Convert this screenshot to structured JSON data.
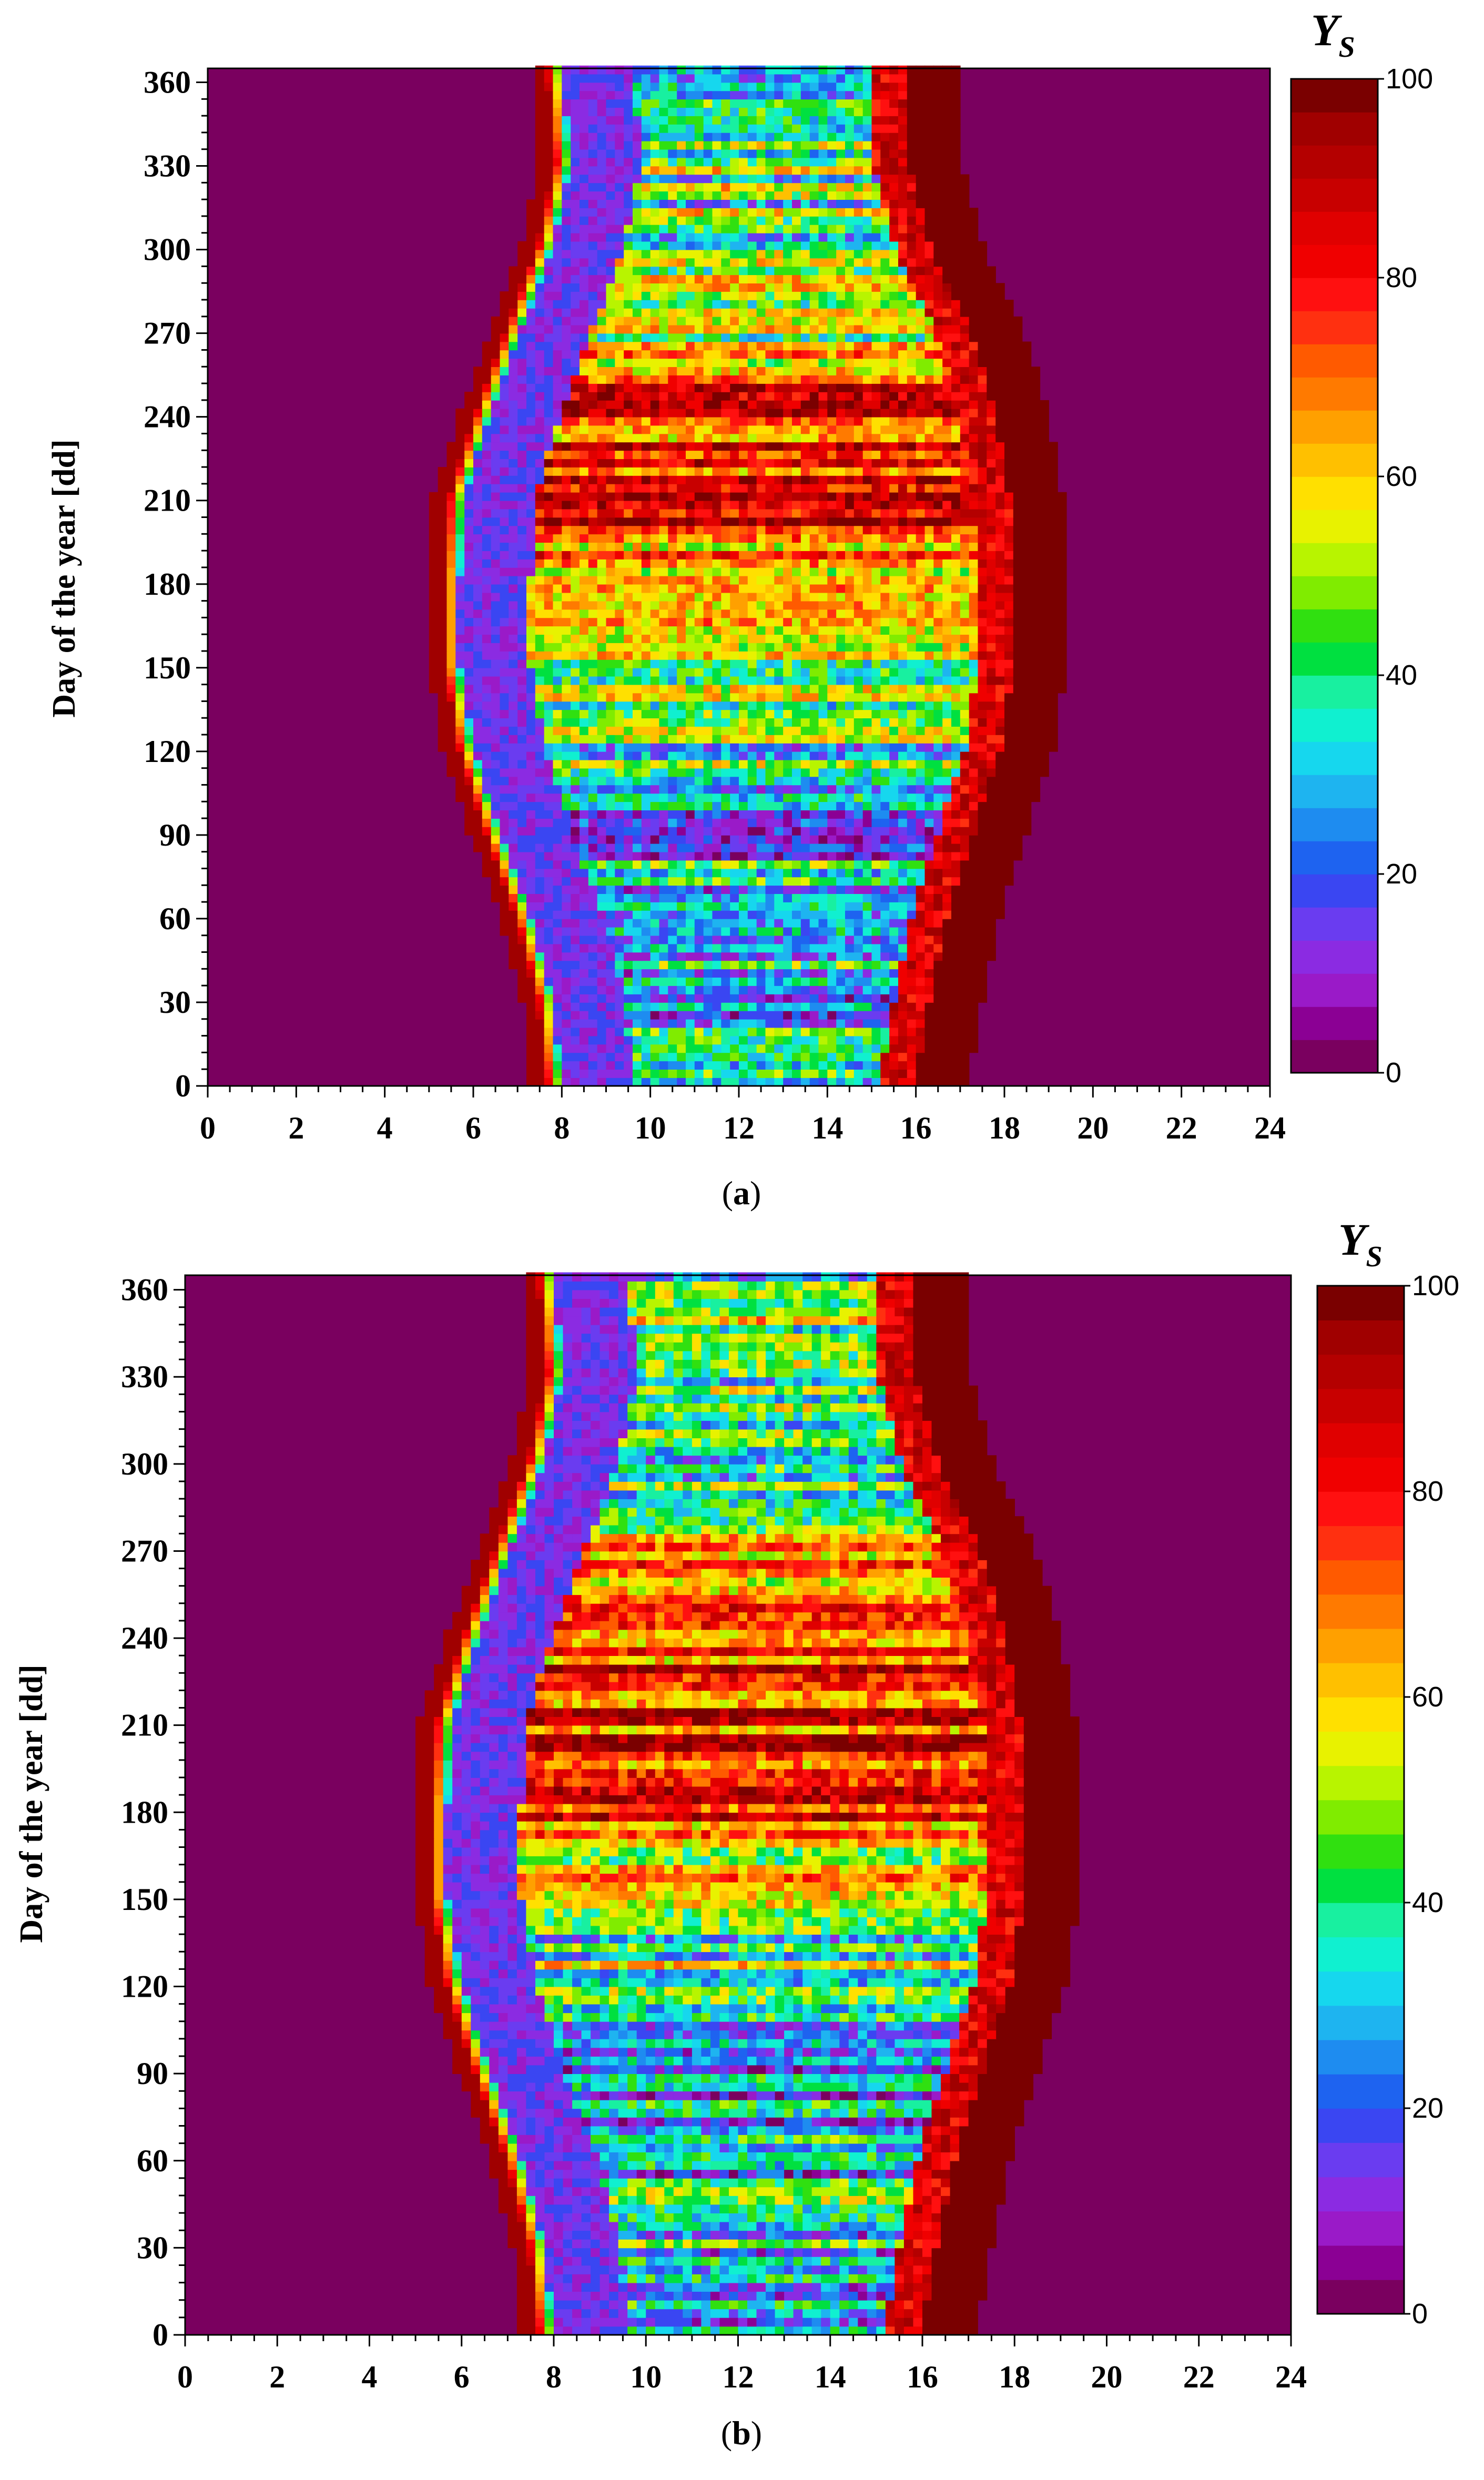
{
  "figure": {
    "panels": [
      {
        "caption_open": "(",
        "caption_letter": "a",
        "caption_close": ")"
      },
      {
        "caption_open": "(",
        "caption_letter": "b",
        "caption_close": ")"
      }
    ]
  },
  "colors": {
    "background": "#7a005f",
    "scale": [
      "#7a005f",
      "#8b0094",
      "#9a1ac8",
      "#8b2be2",
      "#6a3cf0",
      "#3a46f2",
      "#1e63f0",
      "#1e8cf0",
      "#1eb4f0",
      "#16d7ee",
      "#10f0d0",
      "#18f0a0",
      "#00e040",
      "#30e010",
      "#80ec00",
      "#b8f400",
      "#e8f200",
      "#ffe000",
      "#ffc000",
      "#ffa000",
      "#ff7a00",
      "#ff5a00",
      "#ff3010",
      "#ff1010",
      "#f00000",
      "#e00000",
      "#c80000",
      "#b40000",
      "#a00000",
      "#7a0000"
    ]
  },
  "chart_data": [
    {
      "type": "heatmap",
      "panel": "a",
      "xlabel": "",
      "ylabel": "Day of the year [dd]",
      "xlim": [
        0,
        24
      ],
      "ylim": [
        0,
        365
      ],
      "xticks": [
        "0",
        "2",
        "4",
        "6",
        "8",
        "10",
        "12",
        "14",
        "16",
        "18",
        "20",
        "22",
        "24"
      ],
      "yticks": [
        "0",
        "30",
        "60",
        "90",
        "120",
        "150",
        "180",
        "210",
        "240",
        "270",
        "300",
        "330",
        "360"
      ],
      "colorbar": {
        "title": "Y",
        "subscript": "S",
        "range": [
          0,
          100
        ],
        "ticks": [
          "0",
          "20",
          "40",
          "60",
          "80",
          "100"
        ],
        "levels": 30
      },
      "profiles": {
        "days": [
          0,
          30,
          60,
          90,
          120,
          150,
          180,
          210,
          240,
          270,
          300,
          330,
          365
        ],
        "sunrise": [
          7.2,
          7.0,
          6.5,
          5.8,
          5.2,
          4.9,
          4.9,
          5.0,
          5.6,
          6.3,
          7.0,
          7.4,
          7.2
        ],
        "sunset": [
          17.1,
          17.4,
          17.8,
          18.4,
          19.0,
          19.3,
          19.3,
          19.2,
          18.9,
          18.3,
          17.4,
          16.9,
          17.0
        ],
        "mid_level": [
          30,
          32,
          30,
          25,
          35,
          45,
          72,
          80,
          78,
          55,
          35,
          45,
          40
        ]
      }
    },
    {
      "type": "heatmap",
      "panel": "b",
      "xlabel": "",
      "ylabel": "Day of the year [dd]",
      "xlim": [
        0,
        24
      ],
      "ylim": [
        0,
        365
      ],
      "xticks": [
        "0",
        "2",
        "4",
        "6",
        "8",
        "10",
        "12",
        "14",
        "16",
        "18",
        "20",
        "22",
        "24"
      ],
      "yticks": [
        "0",
        "30",
        "60",
        "90",
        "120",
        "150",
        "180",
        "210",
        "240",
        "270",
        "300",
        "330",
        "360"
      ],
      "colorbar": {
        "title": "Y",
        "subscript": "S",
        "range": [
          0,
          100
        ],
        "ticks": [
          "0",
          "20",
          "40",
          "60",
          "80",
          "100"
        ],
        "levels": 30
      },
      "profiles": {
        "days": [
          0,
          30,
          60,
          90,
          120,
          150,
          180,
          210,
          240,
          270,
          300,
          330,
          365
        ],
        "sunrise": [
          7.2,
          7.0,
          6.5,
          5.8,
          5.2,
          4.9,
          4.9,
          5.0,
          5.6,
          6.3,
          7.0,
          7.4,
          7.2
        ],
        "sunset": [
          17.1,
          17.4,
          17.8,
          18.4,
          19.0,
          19.3,
          19.3,
          19.2,
          18.9,
          18.3,
          17.4,
          16.9,
          17.0
        ],
        "mid_level": [
          32,
          34,
          33,
          28,
          38,
          50,
          75,
          82,
          80,
          60,
          38,
          48,
          42
        ]
      }
    }
  ]
}
